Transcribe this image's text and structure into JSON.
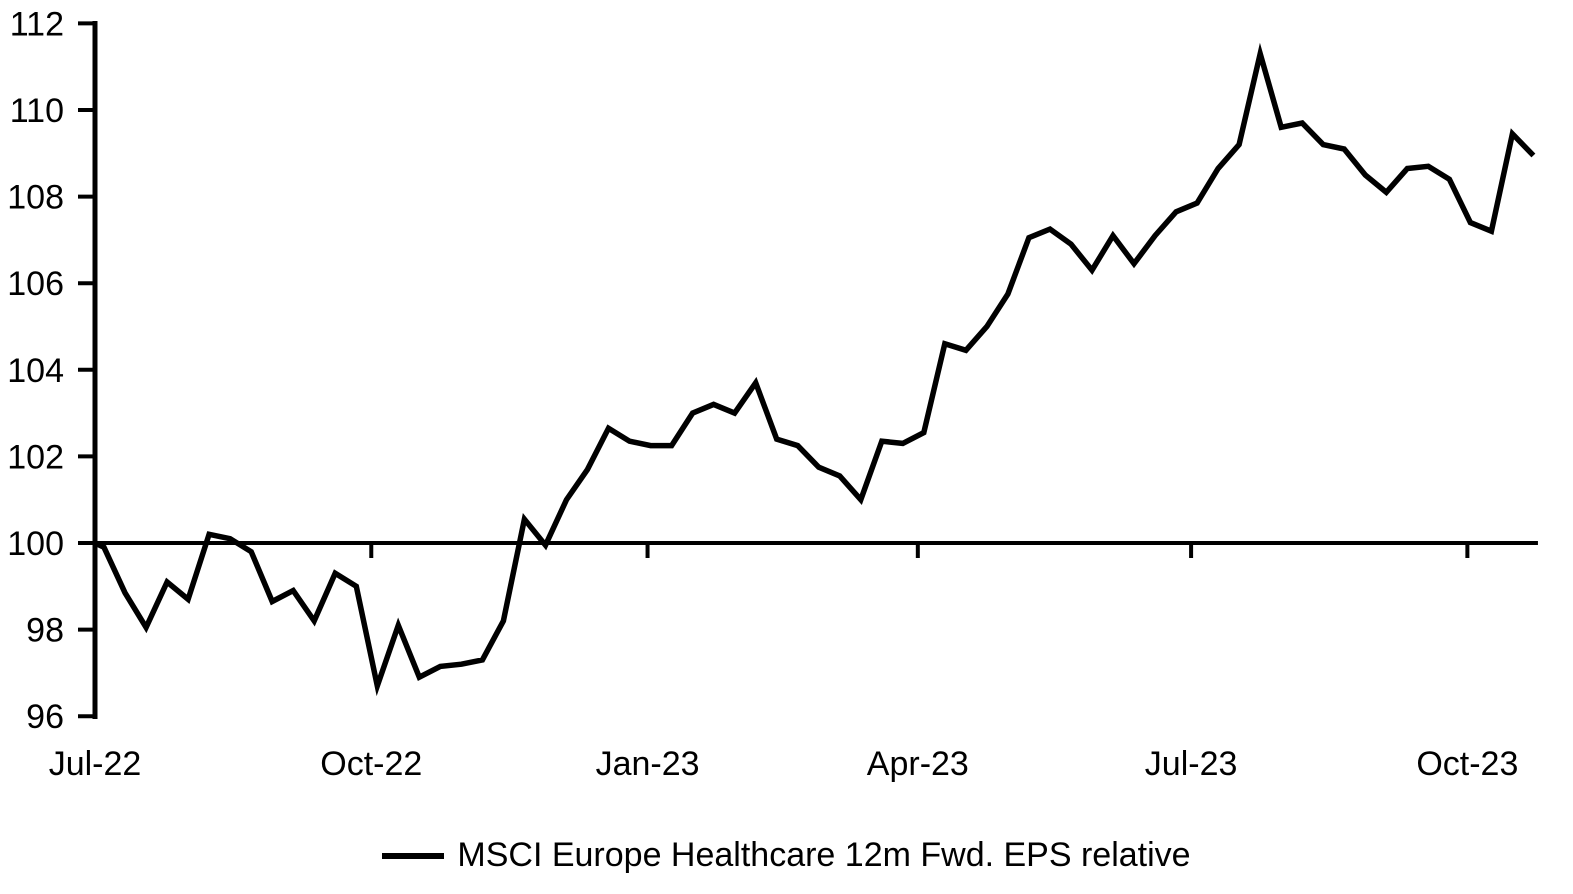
{
  "page": {
    "background": "#ffffff",
    "foreground": "#000000"
  },
  "chart_data": {
    "type": "line",
    "title": "",
    "grid": "off",
    "legend_position": "bottom-center",
    "series": [
      {
        "name": "MSCI Europe Healthcare 12m Fwd. EPS relative",
        "color": "#000000",
        "points_format": [
          "day_since_jul22",
          "value"
        ],
        "points": [
          [
            0,
            100.0
          ],
          [
            3,
            99.9
          ],
          [
            10,
            98.85
          ],
          [
            17,
            98.05
          ],
          [
            24,
            99.1
          ],
          [
            31,
            98.7
          ],
          [
            38,
            100.2
          ],
          [
            45,
            100.1
          ],
          [
            52,
            99.8
          ],
          [
            59,
            98.65
          ],
          [
            66,
            98.9
          ],
          [
            73,
            98.2
          ],
          [
            80,
            99.3
          ],
          [
            87,
            99.0
          ],
          [
            94,
            96.7
          ],
          [
            101,
            98.1
          ],
          [
            108,
            96.9
          ],
          [
            115,
            97.15
          ],
          [
            122,
            97.2
          ],
          [
            129,
            97.3
          ],
          [
            136,
            98.2
          ],
          [
            143,
            100.55
          ],
          [
            150,
            99.95
          ],
          [
            157,
            101.0
          ],
          [
            164,
            101.7
          ],
          [
            171,
            102.65
          ],
          [
            178,
            102.35
          ],
          [
            185,
            102.25
          ],
          [
            192,
            102.25
          ],
          [
            199,
            103.0
          ],
          [
            206,
            103.2
          ],
          [
            213,
            103.0
          ],
          [
            220,
            103.7
          ],
          [
            227,
            102.4
          ],
          [
            234,
            102.25
          ],
          [
            241,
            101.75
          ],
          [
            248,
            101.55
          ],
          [
            255,
            101.0
          ],
          [
            262,
            102.35
          ],
          [
            269,
            102.3
          ],
          [
            276,
            102.55
          ],
          [
            283,
            104.6
          ],
          [
            290,
            104.45
          ],
          [
            297,
            105.0
          ],
          [
            304,
            105.75
          ],
          [
            311,
            107.05
          ],
          [
            318,
            107.25
          ],
          [
            325,
            106.9
          ],
          [
            332,
            106.3
          ],
          [
            339,
            107.1
          ],
          [
            346,
            106.45
          ],
          [
            353,
            107.1
          ],
          [
            360,
            107.65
          ],
          [
            367,
            107.85
          ],
          [
            374,
            108.65
          ],
          [
            381,
            109.2
          ],
          [
            388,
            111.3
          ],
          [
            395,
            109.6
          ],
          [
            402,
            109.7
          ],
          [
            409,
            109.2
          ],
          [
            416,
            109.1
          ],
          [
            423,
            108.5
          ],
          [
            430,
            108.1
          ],
          [
            437,
            108.65
          ],
          [
            444,
            108.7
          ],
          [
            451,
            108.4
          ],
          [
            458,
            107.4
          ],
          [
            465,
            107.2
          ],
          [
            472,
            109.45
          ],
          [
            479,
            108.95
          ]
        ]
      }
    ],
    "x_axis": {
      "baseline_value": 100,
      "domain_days": [
        0,
        480.5
      ],
      "ticks": [
        {
          "day": 0,
          "label": "Jul-22"
        },
        {
          "day": 92,
          "label": "Oct-22"
        },
        {
          "day": 184,
          "label": "Jan-23"
        },
        {
          "day": 274,
          "label": "Apr-23"
        },
        {
          "day": 365,
          "label": "Jul-23"
        },
        {
          "day": 457,
          "label": "Oct-23"
        }
      ]
    },
    "y_axis": {
      "min": 96,
      "max": 112,
      "tick_step": 2,
      "tick_labels": [
        "112",
        "110",
        "108",
        "106",
        "104",
        "102",
        "100",
        "98",
        "96"
      ],
      "tick_values": [
        112,
        110,
        108,
        106,
        104,
        102,
        100,
        98,
        96
      ]
    }
  },
  "legend": {
    "label": "MSCI Europe Healthcare 12m Fwd. EPS relative",
    "swatch_color": "#000000"
  }
}
